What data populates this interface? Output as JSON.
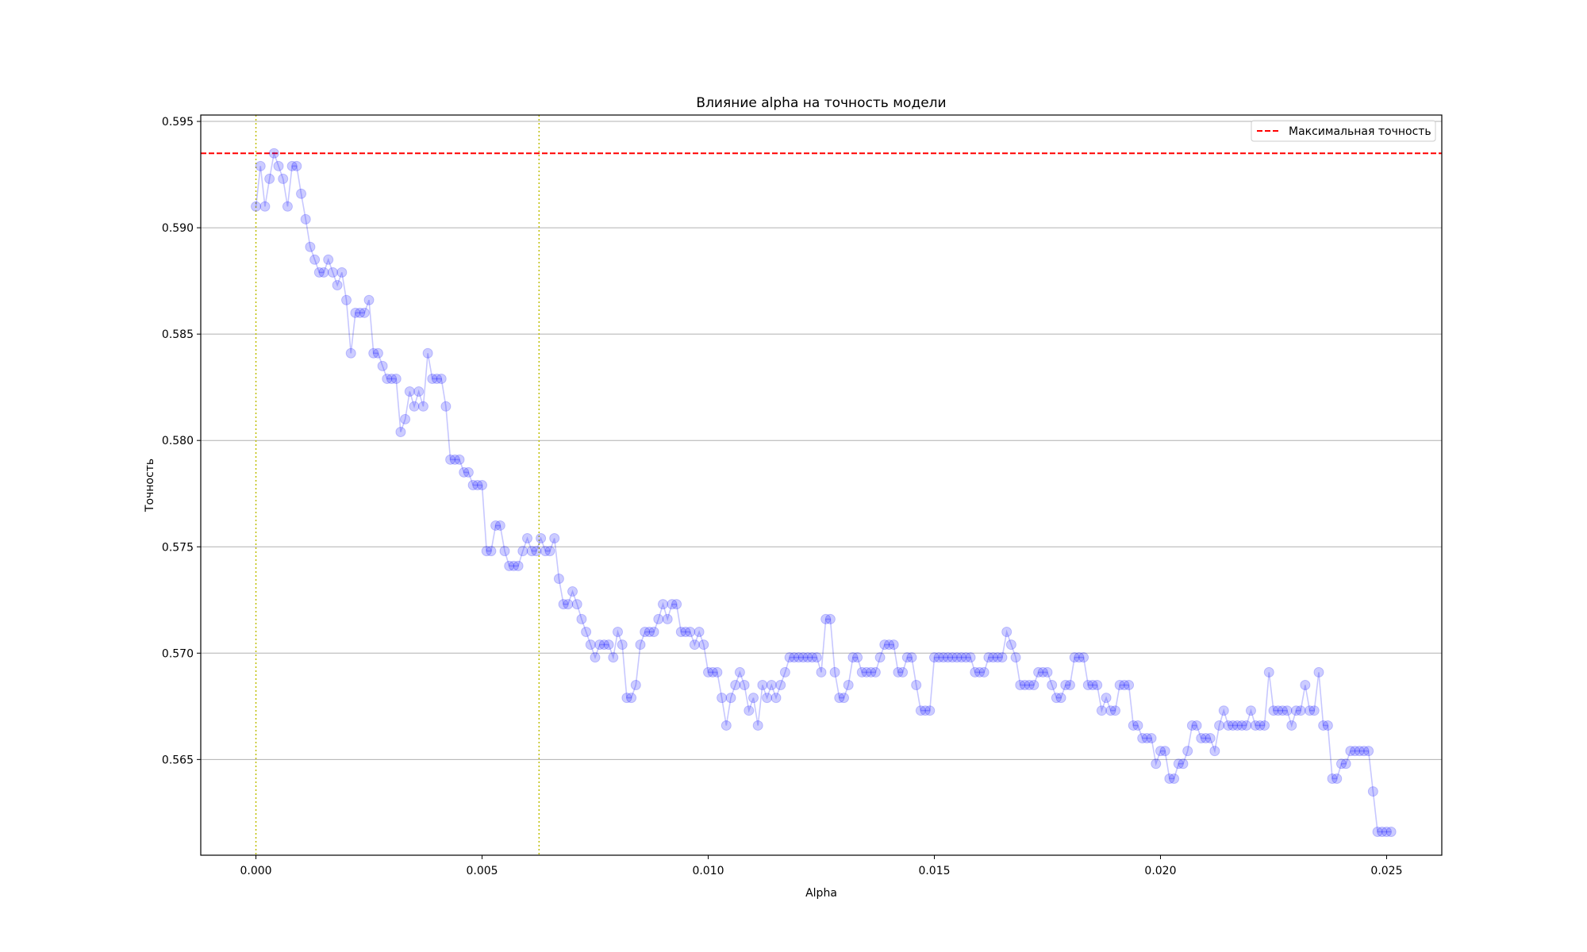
{
  "chart_data": {
    "type": "line",
    "title": "Влияние alpha на точность модели",
    "xlabel": "Alpha",
    "ylabel": "Точность",
    "xlim": [
      -0.00122,
      0.02622
    ],
    "ylim": [
      0.5605,
      0.5953
    ],
    "xticks": [
      0.0,
      0.005,
      0.01,
      0.015,
      0.02,
      0.025
    ],
    "xtick_labels": [
      "0.000",
      "0.005",
      "0.010",
      "0.015",
      "0.020",
      "0.025"
    ],
    "yticks": [
      0.565,
      0.57,
      0.575,
      0.58,
      0.585,
      0.59,
      0.595
    ],
    "ytick_labels": [
      "0.565",
      "0.570",
      "0.575",
      "0.580",
      "0.585",
      "0.590",
      "0.595"
    ],
    "grid": "y",
    "legend": {
      "position": "top-right",
      "entries": [
        {
          "label": "Максимальная точность",
          "color": "#ff0000",
          "style": "dashed"
        }
      ]
    },
    "max_accuracy_line": 0.5935,
    "vertical_markers": [
      0.0,
      0.00626
    ],
    "series": [
      {
        "color": "#0000ff",
        "x_start": 0.0,
        "x_step": 0.0001,
        "values": [
          0.591,
          0.5929,
          0.591,
          0.5923,
          0.5935,
          0.5929,
          0.5923,
          0.591,
          0.5929,
          0.5929,
          0.5916,
          0.5904,
          0.5891,
          0.5885,
          0.5879,
          0.5879,
          0.5885,
          0.5879,
          0.5873,
          0.5879,
          0.5866,
          0.5841,
          0.586,
          0.586,
          0.586,
          0.5866,
          0.5841,
          0.5841,
          0.5835,
          0.5829,
          0.5829,
          0.5829,
          0.5804,
          0.581,
          0.5823,
          0.5816,
          0.5823,
          0.5816,
          0.5841,
          0.5829,
          0.5829,
          0.5829,
          0.5816,
          0.5791,
          0.5791,
          0.5791,
          0.5785,
          0.5785,
          0.5779,
          0.5779,
          0.5779,
          0.5748,
          0.5748,
          0.576,
          0.576,
          0.5748,
          0.5741,
          0.5741,
          0.5741,
          0.5748,
          0.5754,
          0.5748,
          0.5748,
          0.5754,
          0.5748,
          0.5748,
          0.5754,
          0.5735,
          0.5723,
          0.5723,
          0.5729,
          0.5723,
          0.5716,
          0.571,
          0.5704,
          0.5698,
          0.5704,
          0.5704,
          0.5704,
          0.5698,
          0.571,
          0.5704,
          0.5679,
          0.5679,
          0.5685,
          0.5704,
          0.571,
          0.571,
          0.571,
          0.5716,
          0.5723,
          0.5716,
          0.5723,
          0.5723,
          0.571,
          0.571,
          0.571,
          0.5704,
          0.571,
          0.5704,
          0.5691,
          0.5691,
          0.5691,
          0.5679,
          0.5666,
          0.5679,
          0.5685,
          0.5691,
          0.5685,
          0.5673,
          0.5679,
          0.5666,
          0.5685,
          0.5679,
          0.5685,
          0.5679,
          0.5685,
          0.5691,
          0.5698,
          0.5698,
          0.5698,
          0.5698,
          0.5698,
          0.5698,
          0.5698,
          0.5691,
          0.5716,
          0.5716,
          0.5691,
          0.5679,
          0.5679,
          0.5685,
          0.5698,
          0.5698,
          0.5691,
          0.5691,
          0.5691,
          0.5691,
          0.5698,
          0.5704,
          0.5704,
          0.5704,
          0.5691,
          0.5691,
          0.5698,
          0.5698,
          0.5685,
          0.5673,
          0.5673,
          0.5673,
          0.5698,
          0.5698,
          0.5698,
          0.5698,
          0.5698,
          0.5698,
          0.5698,
          0.5698,
          0.5698,
          0.5691,
          0.5691,
          0.5691,
          0.5698,
          0.5698,
          0.5698,
          0.5698,
          0.571,
          0.5704,
          0.5698,
          0.5685,
          0.5685,
          0.5685,
          0.5685,
          0.5691,
          0.5691,
          0.5691,
          0.5685,
          0.5679,
          0.5679,
          0.5685,
          0.5685,
          0.5698,
          0.5698,
          0.5698,
          0.5685,
          0.5685,
          0.5685,
          0.5673,
          0.5679,
          0.5673,
          0.5673,
          0.5685,
          0.5685,
          0.5685,
          0.5666,
          0.5666,
          0.566,
          0.566,
          0.566,
          0.5648,
          0.5654,
          0.5654,
          0.5641,
          0.5641,
          0.5648,
          0.5648,
          0.5654,
          0.5666,
          0.5666,
          0.566,
          0.566,
          0.566,
          0.5654,
          0.5666,
          0.5673,
          0.5666,
          0.5666,
          0.5666,
          0.5666,
          0.5666,
          0.5673,
          0.5666,
          0.5666,
          0.5666,
          0.5691,
          0.5673,
          0.5673,
          0.5673,
          0.5673,
          0.5666,
          0.5673,
          0.5673,
          0.5685,
          0.5673,
          0.5673,
          0.5691,
          0.5666,
          0.5666,
          0.5641,
          0.5641,
          0.5648,
          0.5648,
          0.5654,
          0.5654,
          0.5654,
          0.5654,
          0.5654,
          0.5635,
          0.5616,
          0.5616,
          0.5616,
          0.5616
        ]
      }
    ]
  }
}
